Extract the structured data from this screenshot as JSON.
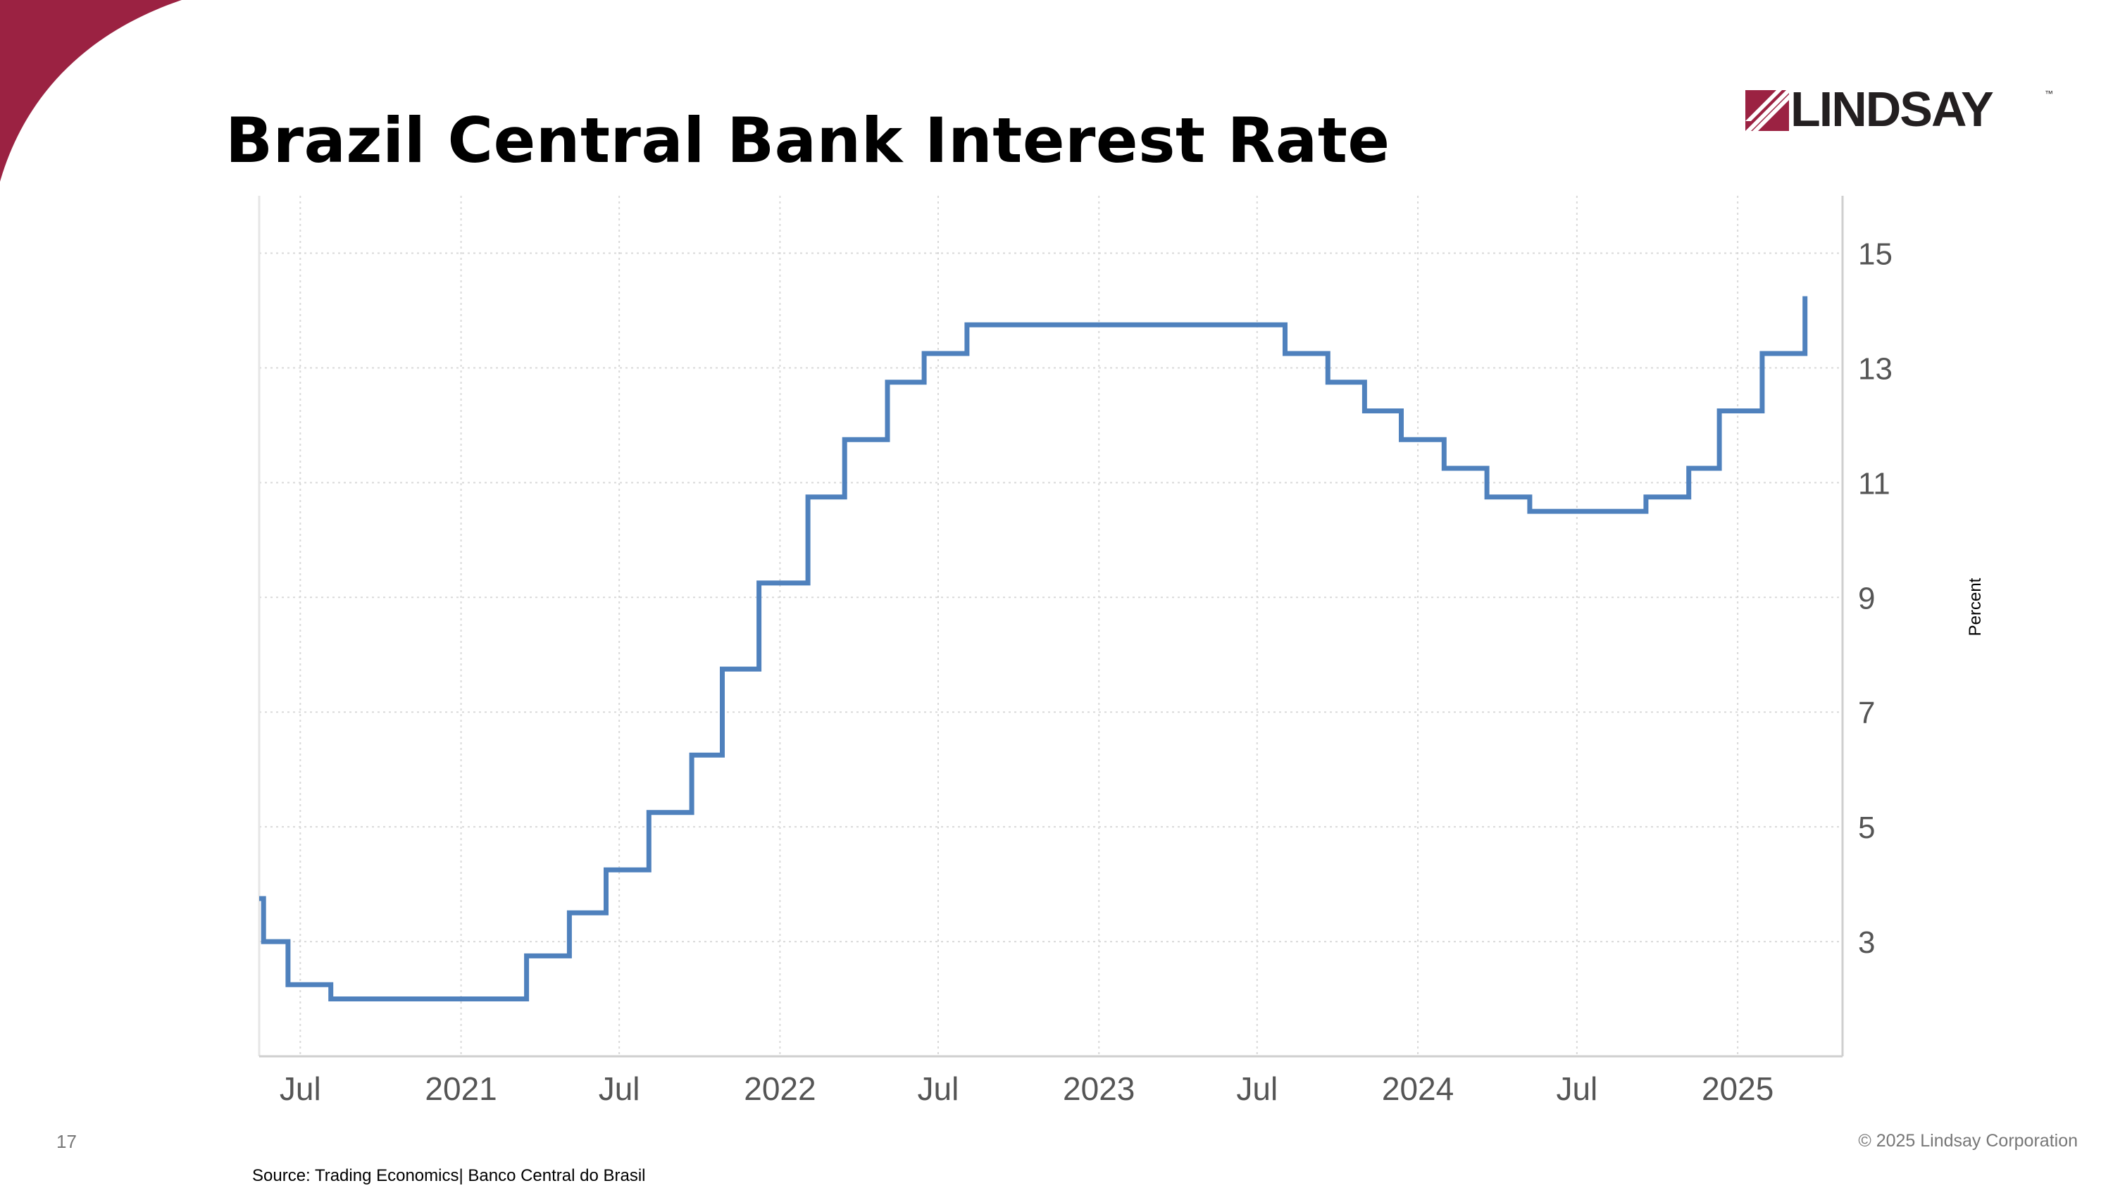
{
  "slide": {
    "title": "Brazil Central Bank Interest Rate",
    "page_number": "17",
    "copyright": "© 2025 Lindsay Corporation",
    "source": "Source: Trading Economics| Banco Central do Brasil",
    "logo": {
      "text": "LINDSAY",
      "trademark": "™",
      "color": "#231f20",
      "accent": "#9b2242"
    },
    "accent_color": "#9b2242"
  },
  "chart_data": {
    "type": "line",
    "step": true,
    "title": "",
    "xlabel": "",
    "ylabel": "Percent",
    "y_axis_side": "right",
    "ylim": [
      1,
      16
    ],
    "xlim": [
      "2020-05-15",
      "2025-05-01"
    ],
    "grid": true,
    "line_color": "#4f81bd",
    "yticks": [
      3,
      5,
      7,
      9,
      11,
      13,
      15
    ],
    "xticks": [
      {
        "label": "Jul",
        "date": "2020-07-01"
      },
      {
        "label": "2021",
        "date": "2021-01-01"
      },
      {
        "label": "Jul",
        "date": "2021-07-01"
      },
      {
        "label": "2022",
        "date": "2022-01-01"
      },
      {
        "label": "Jul",
        "date": "2022-07-01"
      },
      {
        "label": "2023",
        "date": "2023-01-01"
      },
      {
        "label": "Jul",
        "date": "2023-07-01"
      },
      {
        "label": "2024",
        "date": "2024-01-01"
      },
      {
        "label": "Jul",
        "date": "2024-07-01"
      },
      {
        "label": "2025",
        "date": "2025-01-01"
      }
    ],
    "series": [
      {
        "points": [
          {
            "x": "2020-05-15",
            "y": 3.75
          },
          {
            "x": "2020-05-20",
            "y": 3.0
          },
          {
            "x": "2020-06-17",
            "y": 2.25
          },
          {
            "x": "2020-08-05",
            "y": 2.0
          },
          {
            "x": "2021-03-17",
            "y": 2.75
          },
          {
            "x": "2021-05-05",
            "y": 3.5
          },
          {
            "x": "2021-06-16",
            "y": 4.25
          },
          {
            "x": "2021-08-04",
            "y": 5.25
          },
          {
            "x": "2021-09-22",
            "y": 6.25
          },
          {
            "x": "2021-10-27",
            "y": 7.75
          },
          {
            "x": "2021-12-08",
            "y": 9.25
          },
          {
            "x": "2022-02-02",
            "y": 10.75
          },
          {
            "x": "2022-03-16",
            "y": 11.75
          },
          {
            "x": "2022-05-04",
            "y": 12.75
          },
          {
            "x": "2022-06-15",
            "y": 13.25
          },
          {
            "x": "2022-08-03",
            "y": 13.75
          },
          {
            "x": "2023-08-02",
            "y": 13.25
          },
          {
            "x": "2023-09-20",
            "y": 12.75
          },
          {
            "x": "2023-11-01",
            "y": 12.25
          },
          {
            "x": "2023-12-13",
            "y": 11.75
          },
          {
            "x": "2024-01-31",
            "y": 11.25
          },
          {
            "x": "2024-03-20",
            "y": 10.75
          },
          {
            "x": "2024-05-08",
            "y": 10.5
          },
          {
            "x": "2024-09-18",
            "y": 10.75
          },
          {
            "x": "2024-11-06",
            "y": 11.25
          },
          {
            "x": "2024-12-11",
            "y": 12.25
          },
          {
            "x": "2025-01-29",
            "y": 13.25
          },
          {
            "x": "2025-03-19",
            "y": 14.25
          }
        ]
      }
    ]
  }
}
